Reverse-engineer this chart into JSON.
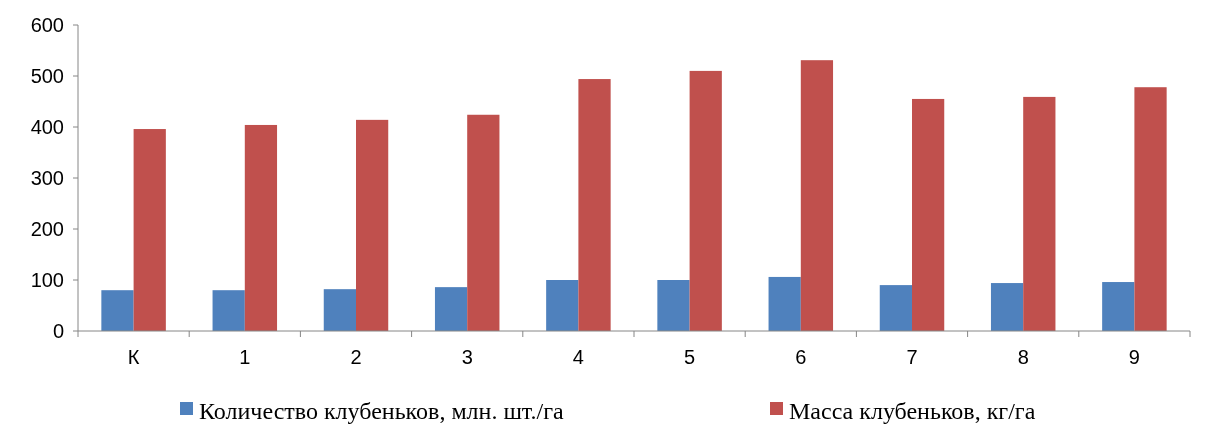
{
  "chart_data": {
    "type": "bar",
    "categories": [
      "К",
      "1",
      "2",
      "3",
      "4",
      "5",
      "6",
      "7",
      "8",
      "9"
    ],
    "series": [
      {
        "name": "Количество клубеньков, млн. шт./га",
        "color": "#4f81bd",
        "values": [
          80,
          80,
          82,
          86,
          100,
          100,
          106,
          90,
          94,
          96
        ]
      },
      {
        "name": "Масса клубеньков, кг/га",
        "color": "#c0504d",
        "values": [
          396,
          404,
          414,
          424,
          494,
          510,
          531,
          455,
          459,
          478
        ]
      }
    ],
    "ylim": [
      0,
      600
    ],
    "yticks": [
      0,
      100,
      200,
      300,
      400,
      500,
      600
    ],
    "grid": false,
    "legend": "bottom"
  }
}
